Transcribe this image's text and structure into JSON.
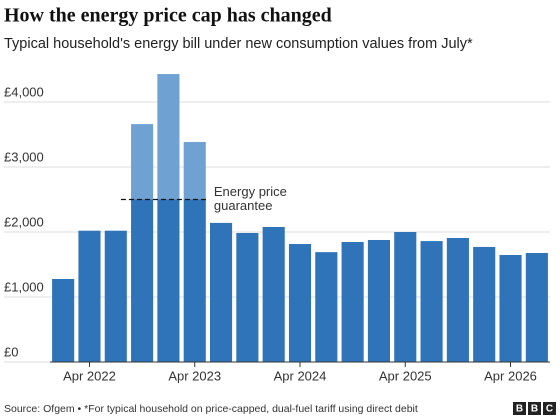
{
  "chart_data": {
    "type": "bar",
    "title": "How the energy price cap has changed",
    "subtitle": "Typical household's energy bill under new consumption values from July*",
    "categories": [
      null,
      "Apr 2022",
      null,
      null,
      null,
      "Apr 2023",
      null,
      null,
      null,
      "Apr 2024",
      null,
      null,
      null,
      "Apr 2025",
      null,
      null,
      null,
      "Apr 2026",
      null
    ],
    "series": [
      {
        "name": "Price cap",
        "color": "#6fa2d3",
        "values": [
          1277,
          2020,
          2020,
          3660,
          4430,
          3385,
          2140,
          1985,
          2077,
          1815,
          1690,
          1846,
          1877,
          2000,
          1860,
          1908,
          1770,
          1646,
          1677
        ]
      },
      {
        "name": "Energy price guarantee",
        "color": "#2f73b8",
        "values": [
          null,
          null,
          null,
          2500,
          2500,
          2500,
          null,
          null,
          null,
          null,
          null,
          null,
          null,
          null,
          null,
          null,
          null,
          null,
          null
        ]
      }
    ],
    "bar_color": "#2f73b8",
    "annotation_lines": [
      "Energy price",
      "guarantee"
    ],
    "ylim": [
      0,
      4400
    ],
    "yticks": [
      {
        "value": 0,
        "label": "£0"
      },
      {
        "value": 1000,
        "label": "£1,000"
      },
      {
        "value": 2000,
        "label": "£2,000"
      },
      {
        "value": 3000,
        "label": "£3,000"
      },
      {
        "value": 4000,
        "label": "£4,000"
      }
    ],
    "grid": true,
    "source": "Source: Ofgem • *For typical household on price-capped, dual-fuel tariff using direct debit",
    "logo": [
      "B",
      "B",
      "C"
    ]
  }
}
